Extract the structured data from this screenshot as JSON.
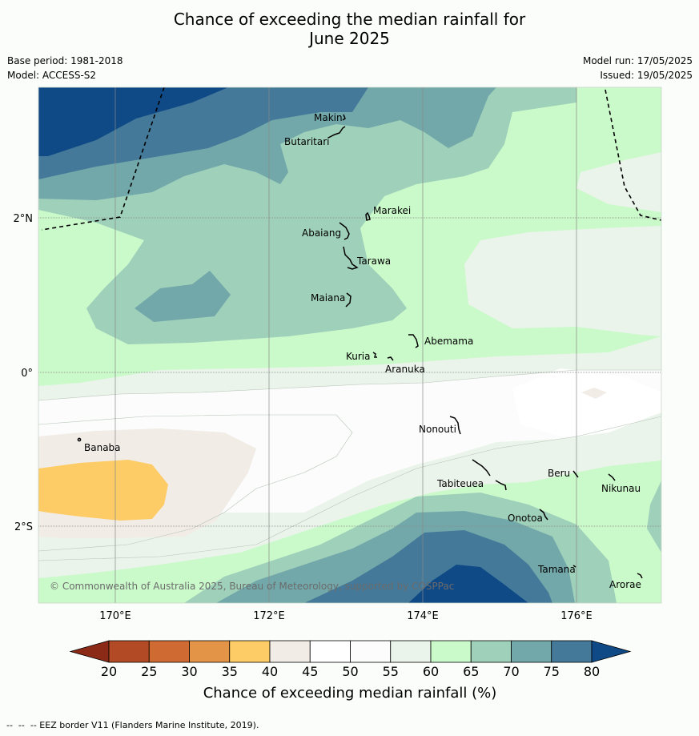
{
  "title_line1": "Chance of exceeding the median rainfall for",
  "title_line2": "June 2025",
  "base_period": "Base period: 1981-2018",
  "model": "Model: ACCESS-S2",
  "model_run": "Model run: 17/05/2025",
  "issued": "Issued: 19/05/2025",
  "copyright": "© Commonwealth of Australia 2025, Bureau of Meteorology, supported by COSPPac",
  "lon_labels": [
    "170°E",
    "172°E",
    "174°E",
    "176°E"
  ],
  "lat_labels": [
    "2°N",
    "0°",
    "2°S"
  ],
  "islands": [
    "Makin",
    "Butaritari",
    "Marakei",
    "Abaiang",
    "Tarawa",
    "Maiana",
    "Abemama",
    "Kuria",
    "Aranuka",
    "Banaba",
    "Nonouti",
    "Tabiteuea",
    "Beru",
    "Nikunau",
    "Onotoa",
    "Tamana",
    "Arorae"
  ],
  "colorbar": {
    "label": "Chance of exceeding median rainfall (%)",
    "ticks": [
      "20",
      "25",
      "30",
      "35",
      "40",
      "45",
      "50",
      "55",
      "60",
      "65",
      "70",
      "75",
      "80"
    ],
    "colors": [
      "#8b2a17",
      "#b24a26",
      "#d06a33",
      "#e39446",
      "#fdcc66",
      "#f1ece6",
      "#ffffff",
      "#fbfcfb",
      "#ebf4eb",
      "#caf9ca",
      "#9fd0ba",
      "#72a8aa",
      "#447999",
      "#0f4a86"
    ]
  },
  "footer": "--  --  -- EEZ border V11 (Flanders Marine Institute, 2019)."
}
